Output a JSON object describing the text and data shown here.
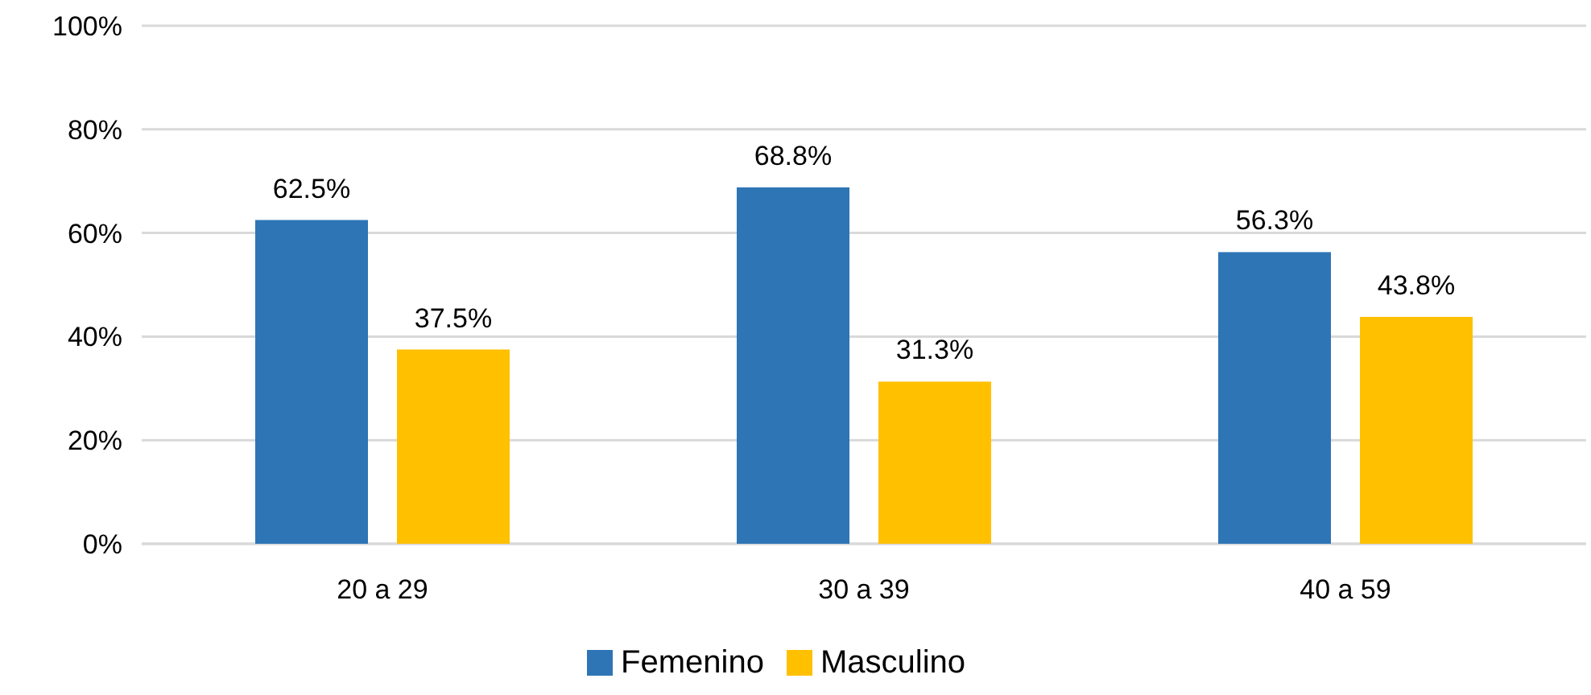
{
  "chart_data": {
    "type": "bar",
    "categories": [
      "20 a 29",
      "30 a 39",
      "40 a 59"
    ],
    "series": [
      {
        "name": "Femenino",
        "color": "#2e75b6",
        "values": [
          62.5,
          68.8,
          56.3
        ],
        "value_labels": [
          "62.5%",
          "68.8%",
          "56.3%"
        ]
      },
      {
        "name": "Masculino",
        "color": "#ffc000",
        "values": [
          37.5,
          31.3,
          43.8
        ],
        "value_labels": [
          "37.5%",
          "31.3%",
          "43.8%"
        ]
      }
    ],
    "ylim": [
      0,
      100
    ],
    "yticks": [
      {
        "value": 0,
        "label": "0%"
      },
      {
        "value": 20,
        "label": "20%"
      },
      {
        "value": 40,
        "label": "40%"
      },
      {
        "value": 60,
        "label": "60%"
      },
      {
        "value": 80,
        "label": "80%"
      },
      {
        "value": 100,
        "label": "100%"
      }
    ],
    "grid": "y",
    "legend": "bottom"
  }
}
